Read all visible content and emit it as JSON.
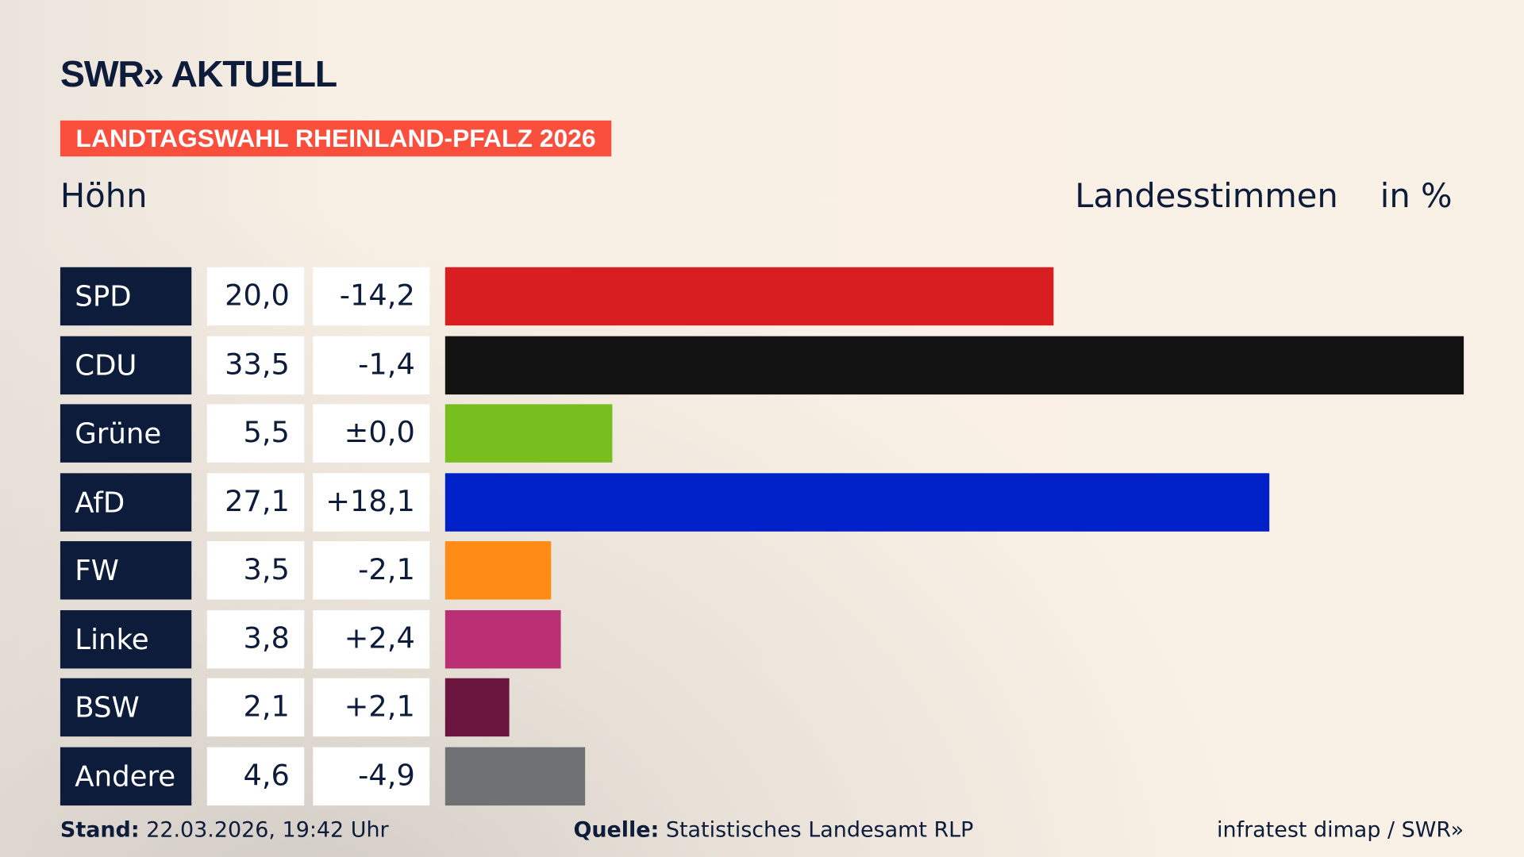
{
  "header": {
    "logo": "SWR» AKTUELL",
    "banner": "LANDTAGSWAHL RHEINLAND-PFALZ 2026",
    "location": "Höhn",
    "measure": "Landesstimmen",
    "unit": "in %"
  },
  "chart_data": {
    "type": "bar",
    "orientation": "horizontal",
    "categories": [
      "SPD",
      "CDU",
      "Grüne",
      "AfD",
      "FW",
      "Linke",
      "BSW",
      "Andere"
    ],
    "values": [
      20.0,
      33.5,
      5.5,
      27.1,
      3.5,
      3.8,
      2.1,
      4.6
    ],
    "value_labels": [
      "20,0",
      "33,5",
      "5,5",
      "27,1",
      "3,5",
      "3,8",
      "2,1",
      "4,6"
    ],
    "change_labels": [
      "-14,2",
      "-1,4",
      "±0,0",
      "+18,1",
      "-2,1",
      "+2,4",
      "+2,1",
      "-4,9"
    ],
    "colors": [
      "#d81e20",
      "#121212",
      "#78be1e",
      "#0021c8",
      "#ff8c17",
      "#bb2f75",
      "#6a163e",
      "#707173"
    ],
    "xlim": [
      0,
      33.5
    ],
    "grid": false
  },
  "footer": {
    "stand_label": "Stand:",
    "stand_value": "22.03.2026, 19:42 Uhr",
    "source_label": "Quelle:",
    "source_value": "Statistisches Landesamt RLP",
    "credit": "infratest dimap / SWR»"
  }
}
